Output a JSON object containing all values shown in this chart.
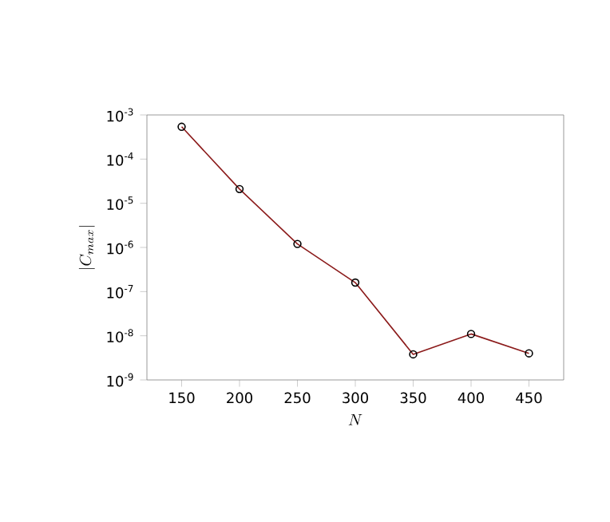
{
  "chart_data": {
    "type": "line",
    "xlabel": "N",
    "ylabel": "\\left|C_{max}\\right|",
    "x": [
      150,
      200,
      250,
      300,
      350,
      400,
      450
    ],
    "series": [
      {
        "color": "#8b1a1a",
        "values": [
          0.00054,
          2.1e-05,
          1.2e-06,
          1.6e-07,
          3.8e-09,
          1.1e-08,
          4e-09
        ]
      }
    ],
    "xlim": [
      120,
      480
    ],
    "ylim": [
      1e-09,
      0.001
    ],
    "xticks": [
      150,
      200,
      250,
      300,
      350,
      400,
      450
    ],
    "yticks": [
      {
        "value": 1e-09,
        "label": "10$^{-9}$"
      },
      {
        "value": 1e-08,
        "label": "10$^{-8}$"
      },
      {
        "value": 1e-07,
        "label": "10$^{-7}$"
      },
      {
        "value": 1e-06,
        "label": "10$^{-6}$"
      },
      {
        "value": 1e-05,
        "label": "10$^{-5}$"
      },
      {
        "value": 0.0001,
        "label": "10$^{-4}$"
      },
      {
        "value": 0.001,
        "label": "10$^{-3}$"
      }
    ],
    "log": "y",
    "marker": "circle",
    "line_style": "solid"
  }
}
